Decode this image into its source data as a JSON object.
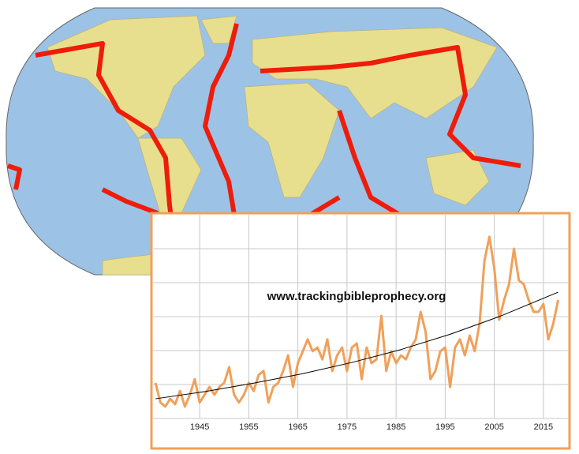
{
  "chart_data": {
    "type": "line",
    "annotation": "www.trackingbibleprophecy.org",
    "x": [
      1936,
      1937,
      1938,
      1939,
      1940,
      1941,
      1942,
      1943,
      1944,
      1945,
      1946,
      1947,
      1948,
      1949,
      1950,
      1951,
      1952,
      1953,
      1954,
      1955,
      1956,
      1957,
      1958,
      1959,
      1960,
      1961,
      1962,
      1963,
      1964,
      1965,
      1966,
      1967,
      1968,
      1969,
      1970,
      1971,
      1972,
      1973,
      1974,
      1975,
      1976,
      1977,
      1978,
      1979,
      1980,
      1981,
      1982,
      1983,
      1984,
      1985,
      1986,
      1987,
      1988,
      1989,
      1990,
      1991,
      1992,
      1993,
      1994,
      1995,
      1996,
      1997,
      1998,
      1999,
      2000,
      2001,
      2002,
      2003,
      2004,
      2005,
      2006,
      2007,
      2008,
      2009,
      2010,
      2011,
      2012,
      2013,
      2014,
      2015,
      2016,
      2017,
      2018
    ],
    "series": [
      {
        "color": "#f0a05a",
        "values": [
          1.05,
          0.47,
          0.35,
          0.58,
          0.42,
          0.81,
          0.35,
          0.7,
          1.16,
          0.47,
          0.7,
          0.93,
          0.7,
          0.93,
          1.05,
          1.51,
          0.7,
          0.47,
          0.7,
          1.05,
          0.81,
          1.28,
          1.4,
          0.47,
          0.93,
          1.05,
          1.4,
          1.86,
          0.93,
          1.63,
          1.98,
          2.33,
          1.98,
          2.09,
          1.74,
          2.33,
          1.4,
          1.86,
          2.09,
          1.4,
          2.09,
          2.21,
          1.16,
          2.09,
          1.63,
          1.74,
          3.02,
          1.4,
          1.98,
          1.63,
          1.86,
          1.74,
          2.09,
          2.33,
          3.14,
          2.56,
          1.16,
          1.4,
          1.98,
          2.09,
          0.93,
          2.09,
          2.33,
          1.86,
          2.44,
          1.98,
          2.79,
          4.65,
          5.35,
          4.42,
          2.91,
          3.49,
          3.95,
          5.0,
          4.07,
          3.95,
          3.49,
          3.14,
          3.14,
          3.37,
          2.33,
          2.79,
          3.49
        ]
      }
    ],
    "trend": {
      "color": "#000000",
      "x": [
        1936,
        1946,
        1956,
        1966,
        1976,
        1986,
        1996,
        2006,
        2016,
        2018
      ],
      "values": [
        0.58,
        0.79,
        1.04,
        1.32,
        1.65,
        2.03,
        2.48,
        3.0,
        3.6,
        3.72
      ]
    },
    "xlim": [
      1935.5,
      2020
    ],
    "ylim": [
      0,
      6
    ],
    "xticks": [
      1945,
      1955,
      1965,
      1975,
      1985,
      1995,
      2005,
      2015
    ],
    "grid": true
  }
}
